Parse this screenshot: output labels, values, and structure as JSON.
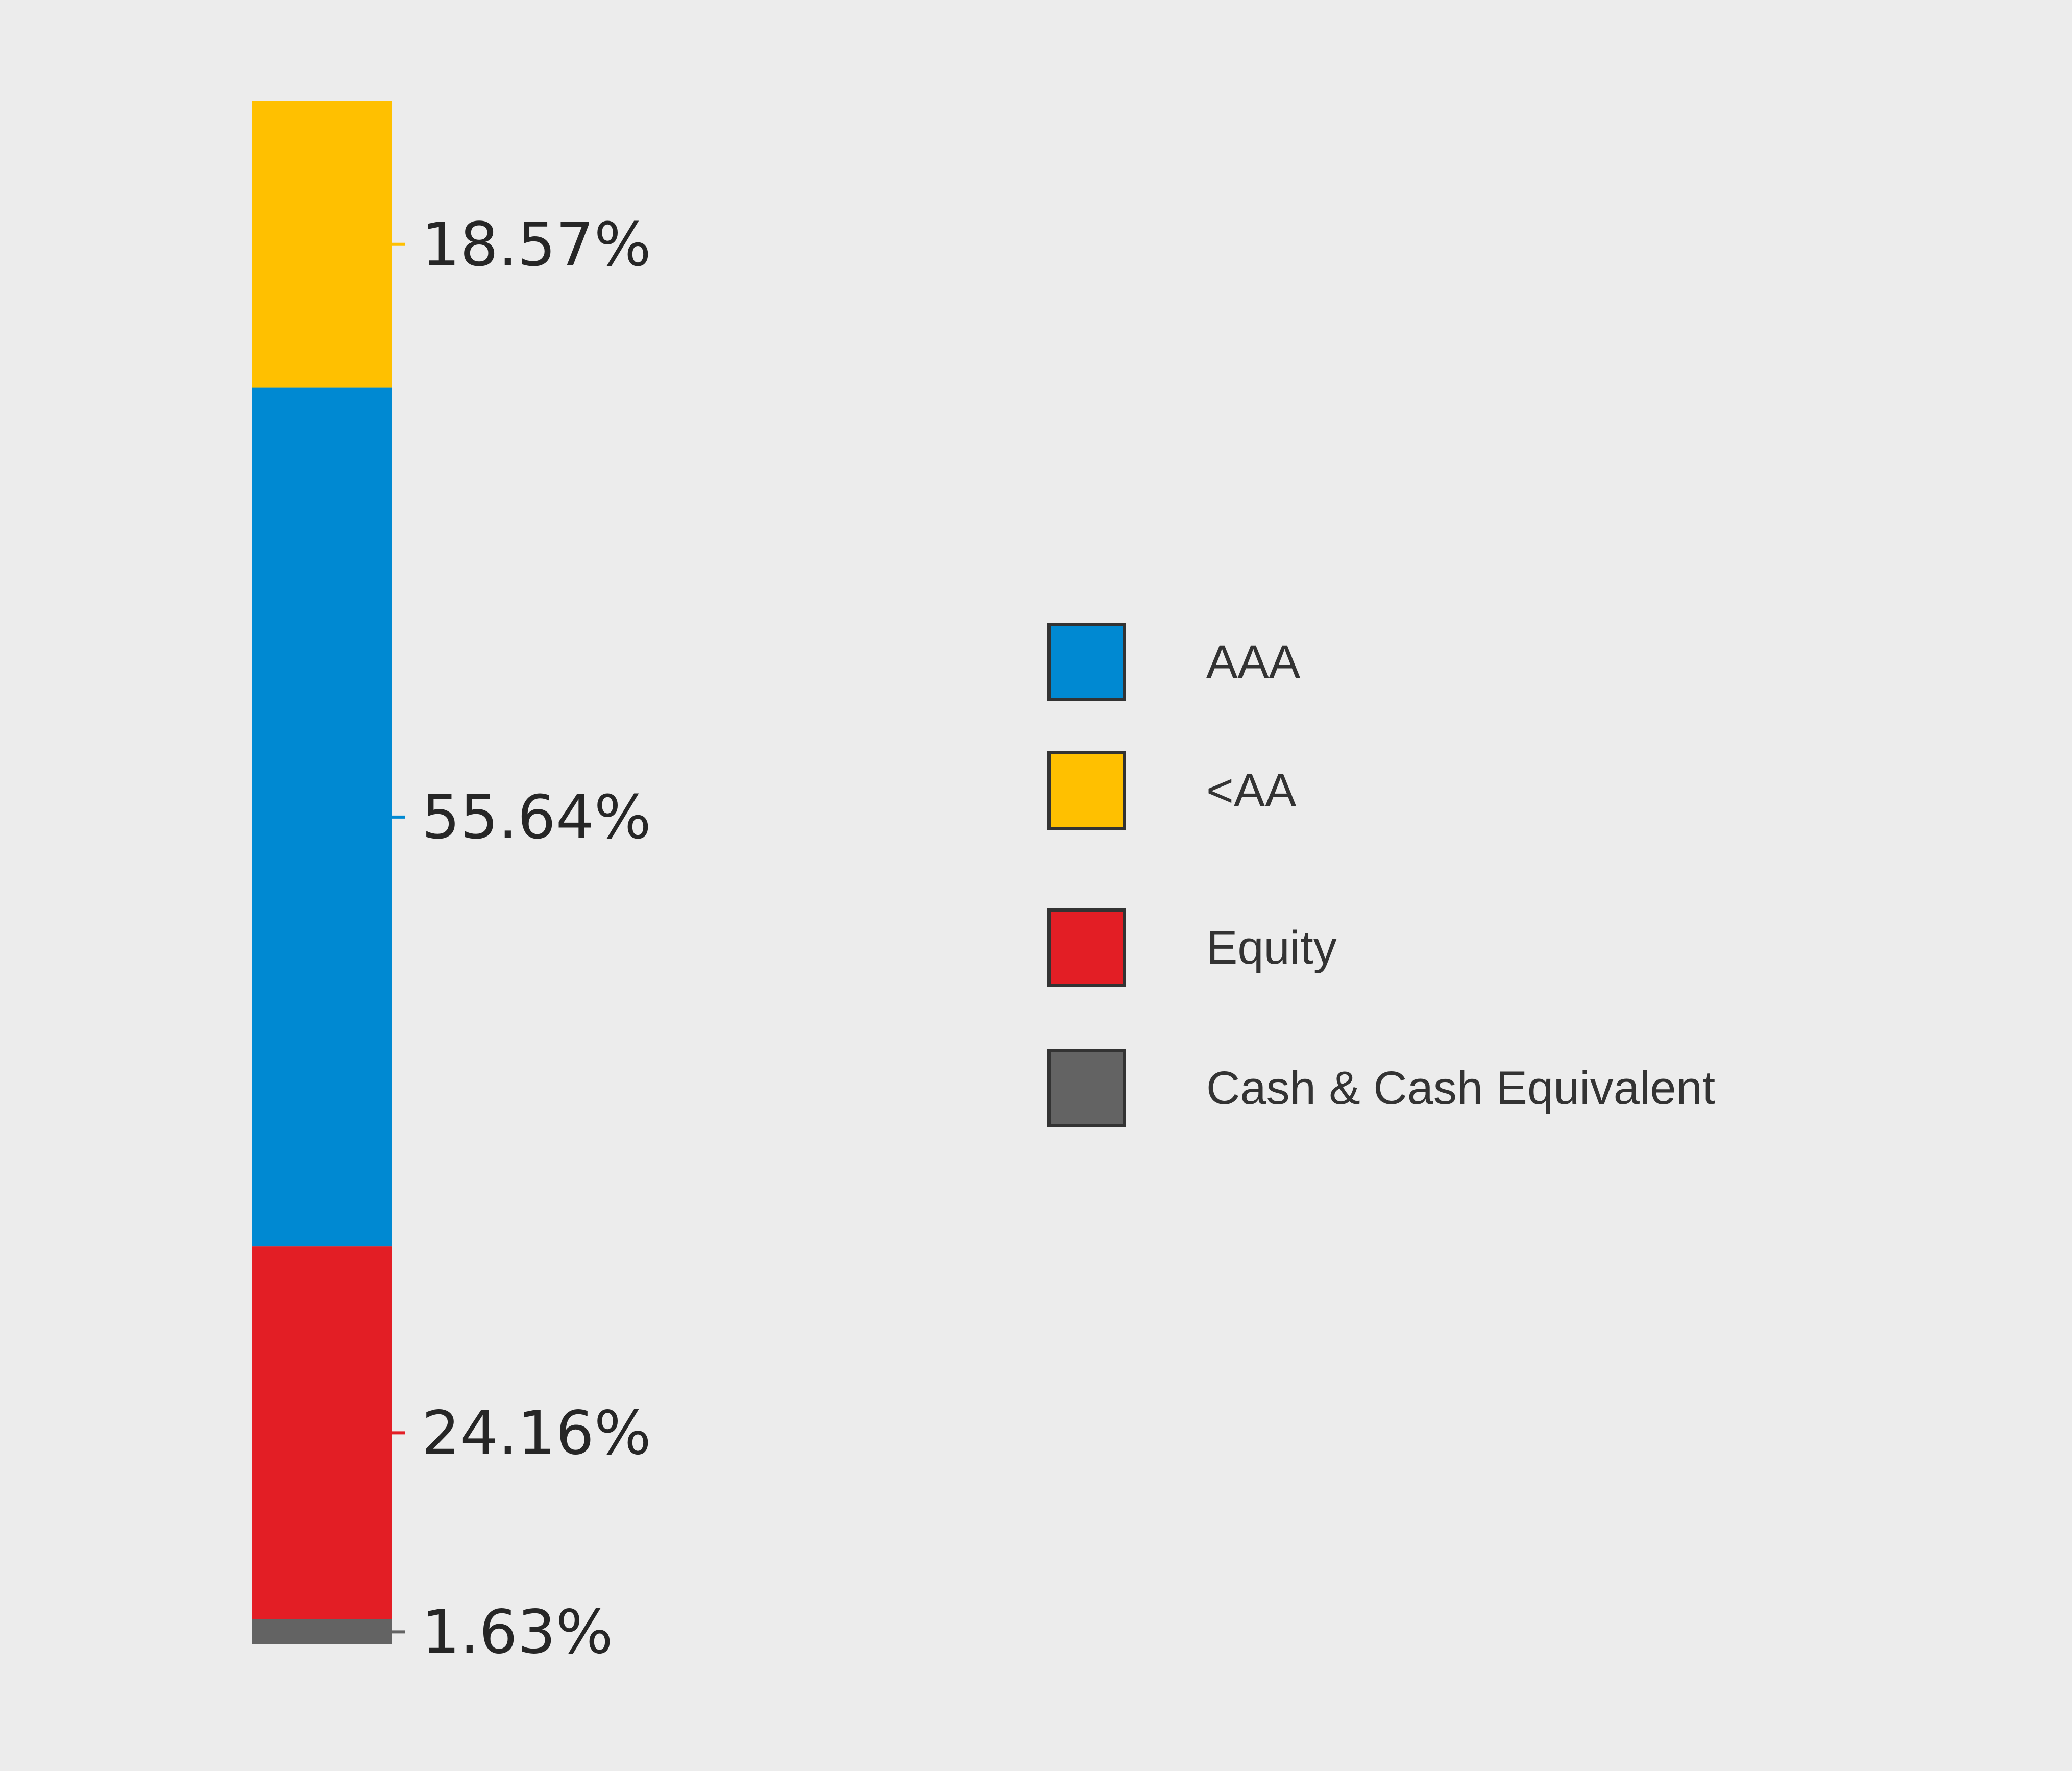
{
  "chart_data": {
    "type": "bar",
    "stacked": true,
    "orientation": "vertical",
    "categories": [
      ""
    ],
    "unit": "%",
    "series": [
      {
        "name": "Cash & Cash Equivalent",
        "value": 1.63,
        "label": "1.63%",
        "color": "#636363"
      },
      {
        "name": "Equity",
        "value": 24.16,
        "label": "24.16%",
        "color": "#e31e25"
      },
      {
        "name": "AAA",
        "value": 55.64,
        "label": "55.64%",
        "color": "#0089d2"
      },
      {
        "name": "<AA",
        "value": 18.57,
        "label": "18.57%",
        "color": "#ffc000"
      }
    ],
    "legend": {
      "placement": "right",
      "items": [
        {
          "label": "AAA",
          "color": "#0089d2"
        },
        {
          "label": "<AA",
          "color": "#ffc000"
        },
        {
          "label": "Equity",
          "color": "#e31e25"
        },
        {
          "label": "Cash & Cash Equivalent",
          "color": "#636363"
        }
      ]
    },
    "title": "",
    "xlabel": "",
    "ylabel": "",
    "ylim": [
      0,
      100
    ],
    "grid": false
  }
}
